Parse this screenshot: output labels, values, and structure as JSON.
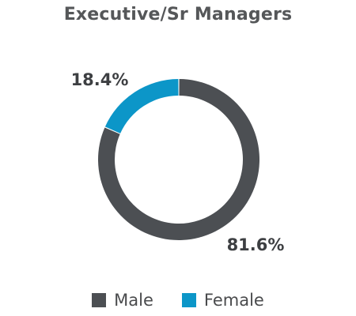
{
  "colors": {
    "male": "#4c4f53",
    "female": "#0c96c8",
    "title": "#555759",
    "label": "#3d3f42"
  },
  "chart_data": {
    "type": "pie",
    "title": "Executive/Sr Managers",
    "categories": [
      "Male",
      "Female"
    ],
    "values": [
      81.6,
      18.4
    ],
    "data_labels": [
      "81.6%",
      "18.4%"
    ],
    "donut": true,
    "legend_position": "bottom"
  },
  "legend": {
    "male_label": "Male",
    "female_label": "Female"
  }
}
